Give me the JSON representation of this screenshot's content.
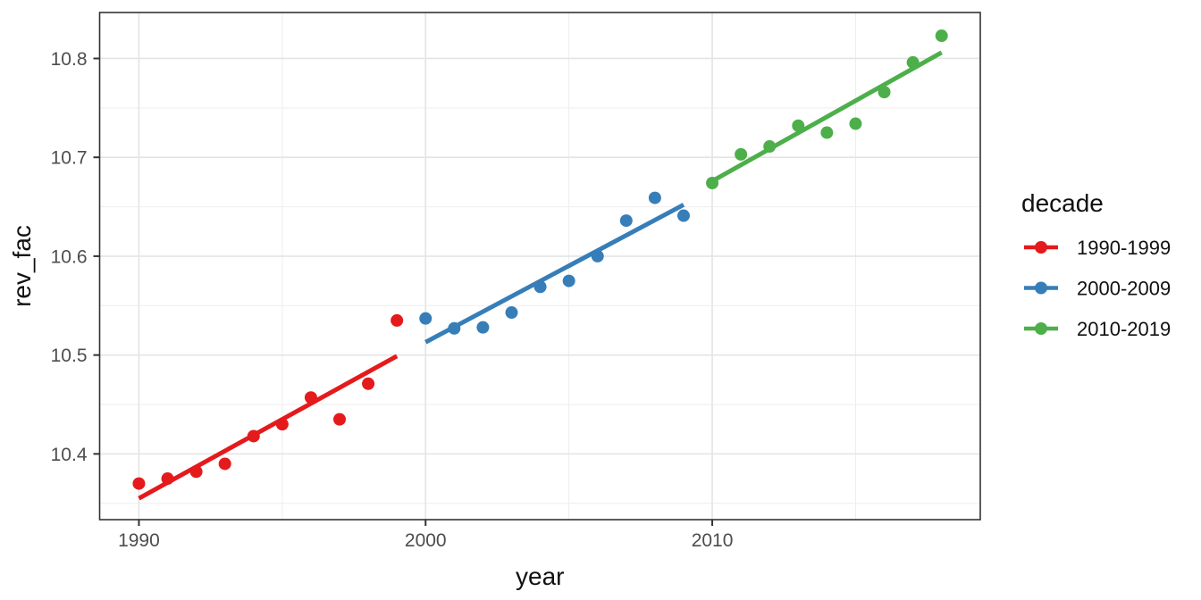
{
  "chart_data": {
    "type": "scatter",
    "title": "",
    "xlabel": "year",
    "ylabel": "rev_fac",
    "xlim": [
      1988.63,
      2019.35
    ],
    "ylim": [
      10.3335,
      10.8465
    ],
    "x_major_ticks": [
      1990,
      2000,
      2010
    ],
    "x_minor_ticks": [
      1995,
      2005,
      2015
    ],
    "y_major_ticks": [
      10.4,
      10.5,
      10.6,
      10.7,
      10.8
    ],
    "y_minor_ticks": [
      10.35,
      10.45,
      10.55,
      10.65,
      10.75
    ],
    "grid": true,
    "legend": {
      "title": "decade",
      "position": "right"
    },
    "series": [
      {
        "name": "1990-1999",
        "color": "#E41A1C",
        "points": [
          [
            1990,
            10.37
          ],
          [
            1991,
            10.375
          ],
          [
            1992,
            10.382
          ],
          [
            1993,
            10.39
          ],
          [
            1994,
            10.418
          ],
          [
            1995,
            10.43
          ],
          [
            1996,
            10.457
          ],
          [
            1997,
            10.435
          ],
          [
            1998,
            10.471
          ],
          [
            1999,
            10.535
          ]
        ],
        "trend": [
          [
            1990,
            10.355
          ],
          [
            1999,
            10.499
          ]
        ]
      },
      {
        "name": "2000-2009",
        "color": "#377EB8",
        "points": [
          [
            2000,
            10.537
          ],
          [
            2001,
            10.527
          ],
          [
            2002,
            10.528
          ],
          [
            2003,
            10.543
          ],
          [
            2004,
            10.569
          ],
          [
            2005,
            10.575
          ],
          [
            2006,
            10.6
          ],
          [
            2007,
            10.636
          ],
          [
            2008,
            10.659
          ],
          [
            2009,
            10.641
          ]
        ],
        "trend": [
          [
            2000,
            10.513
          ],
          [
            2009,
            10.652
          ]
        ]
      },
      {
        "name": "2010-2019",
        "color": "#4DAF4A",
        "points": [
          [
            2010,
            10.674
          ],
          [
            2011,
            10.703
          ],
          [
            2012,
            10.711
          ],
          [
            2013,
            10.732
          ],
          [
            2014,
            10.725
          ],
          [
            2015,
            10.734
          ],
          [
            2016,
            10.766
          ],
          [
            2017,
            10.796
          ],
          [
            2018,
            10.823
          ]
        ],
        "trend": [
          [
            2010,
            10.676
          ],
          [
            2018,
            10.806
          ]
        ]
      }
    ],
    "style": {
      "background": "#ffffff",
      "grid_major_color": "#e4e4e4",
      "grid_minor_color": "#eeeeee",
      "panel_border_color": "#333333",
      "tick_color": "#333333",
      "point_radius": 7,
      "line_width": 5,
      "legend_key_line_width": 4.5
    }
  }
}
